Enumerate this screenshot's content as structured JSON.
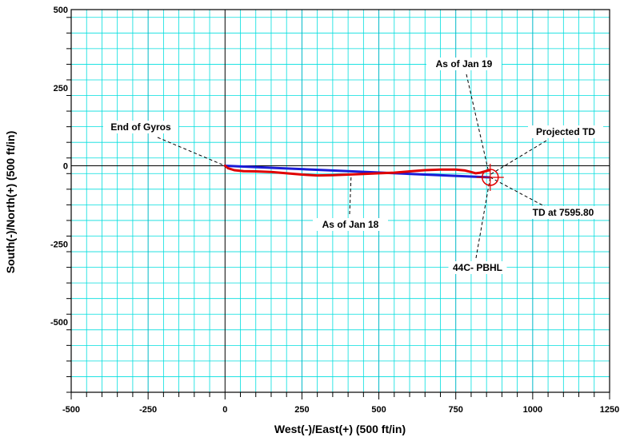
{
  "chart_data": {
    "type": "line",
    "xlabel": "West(-)/East(+) (500 ft/in)",
    "ylabel": "South(-)/North(+) (500 ft/in)",
    "xlim": [
      -500,
      1250
    ],
    "ylim": [
      -725,
      500
    ],
    "x_ticks": [
      -500,
      -250,
      0,
      250,
      500,
      750,
      1000,
      1250
    ],
    "y_ticks": [
      500,
      250,
      0,
      -250,
      -500
    ],
    "grid": true,
    "colors": {
      "grid_major": "#00b8c8",
      "grid_minor": "#00dede",
      "axis": "#000000",
      "planned": "#1b1bd6",
      "actual": "#e00000",
      "target": "#e00000",
      "leader": "#000000"
    },
    "series": [
      {
        "color": "#1b1bd6",
        "x": [
          0,
          860
        ],
        "y": [
          0,
          -37
        ]
      },
      {
        "color": "#e00000",
        "x": [
          0,
          10,
          30,
          60,
          100,
          150,
          200,
          250,
          300,
          350,
          400,
          450,
          500,
          550,
          600,
          650,
          700,
          750,
          780,
          800,
          815,
          830,
          845,
          855,
          860
        ],
        "y": [
          0,
          -8,
          -14,
          -17,
          -18,
          -20,
          -24,
          -28,
          -31,
          -30,
          -28,
          -26,
          -24,
          -22,
          -18,
          -14,
          -12,
          -12,
          -15,
          -20,
          -24,
          -22,
          -18,
          -15,
          -14
        ]
      }
    ],
    "target": {
      "label": "44C- PBHL",
      "x": 862,
      "y": -37
    },
    "annotations": [
      {
        "id": "end-gyros",
        "text": "End of Gyros",
        "point": [
          0,
          0
        ]
      },
      {
        "id": "jan18",
        "text": "As of Jan 18",
        "point": [
          410,
          -28
        ]
      },
      {
        "id": "jan19",
        "text": "As of Jan 19",
        "point": [
          855,
          -12
        ]
      },
      {
        "id": "projected-td",
        "text": "Projected TD",
        "point": [
          862,
          -28
        ]
      },
      {
        "id": "td",
        "text": "TD at 7595.80",
        "point": [
          862,
          -37
        ]
      },
      {
        "id": "pbhl",
        "text": "44C- PBHL",
        "point": [
          862,
          -37
        ]
      }
    ]
  }
}
